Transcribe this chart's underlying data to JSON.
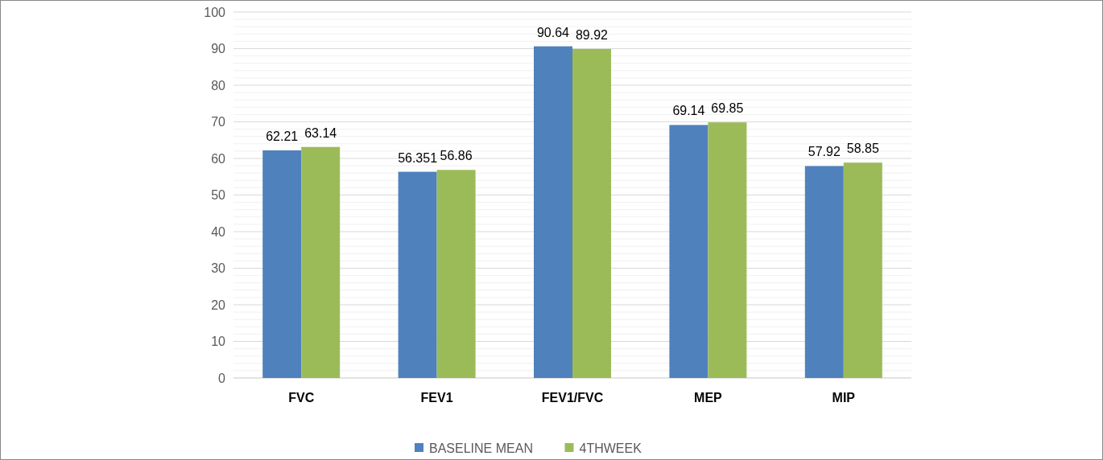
{
  "chart_data": {
    "type": "bar",
    "categories": [
      "FVC",
      "FEV1",
      "FEV1/FVC",
      "MEP",
      "MIP"
    ],
    "series": [
      {
        "name": "BASELINE MEAN",
        "color": "#4f81bd",
        "values": [
          62.21,
          56.351,
          90.64,
          69.14,
          57.92
        ]
      },
      {
        "name": "4THWEEK",
        "color": "#9bbb59",
        "values": [
          63.14,
          56.86,
          89.92,
          69.85,
          58.85
        ]
      }
    ],
    "ylim": [
      0,
      100
    ],
    "yticks": [
      0,
      {
        "value": 2,
        "label": null
      },
      {
        "value": 4,
        "label": null
      },
      {
        "value": 6,
        "label": null
      },
      {
        "value": 8,
        "label": null
      },
      10,
      {
        "value": 12,
        "label": null
      },
      {
        "value": 14,
        "label": null
      },
      {
        "value": 16,
        "label": null
      },
      {
        "value": 18,
        "label": null
      },
      20,
      {
        "value": 22,
        "label": null
      },
      {
        "value": 24,
        "label": null
      },
      {
        "value": 26,
        "label": null
      },
      {
        "value": 28,
        "label": null
      },
      30,
      {
        "value": 32,
        "label": null
      },
      {
        "value": 34,
        "label": null
      },
      {
        "value": 36,
        "label": null
      },
      {
        "value": 38,
        "label": null
      },
      40,
      {
        "value": 42,
        "label": null
      },
      {
        "value": 44,
        "label": null
      },
      {
        "value": 46,
        "label": null
      },
      {
        "value": 48,
        "label": null
      },
      50,
      {
        "value": 52,
        "label": null
      },
      {
        "value": 54,
        "label": null
      },
      {
        "value": 56,
        "label": null
      },
      {
        "value": 58,
        "label": null
      },
      60,
      {
        "value": 62,
        "label": null
      },
      {
        "value": 64,
        "label": null
      },
      {
        "value": 66,
        "label": null
      },
      {
        "value": 68,
        "label": null
      },
      70,
      {
        "value": 72,
        "label": null
      },
      {
        "value": 74,
        "label": null
      },
      {
        "value": 76,
        "label": null
      },
      {
        "value": 78,
        "label": null
      },
      80,
      {
        "value": 82,
        "label": null
      },
      {
        "value": 84,
        "label": null
      },
      {
        "value": 86,
        "label": null
      },
      {
        "value": 88,
        "label": null
      },
      90,
      {
        "value": 92,
        "label": null
      },
      {
        "value": 94,
        "label": null
      },
      {
        "value": 96,
        "label": null
      },
      {
        "value": 98,
        "label": null
      },
      100
    ],
    "grid": "y",
    "legend": "bottom",
    "data_labels": true
  }
}
